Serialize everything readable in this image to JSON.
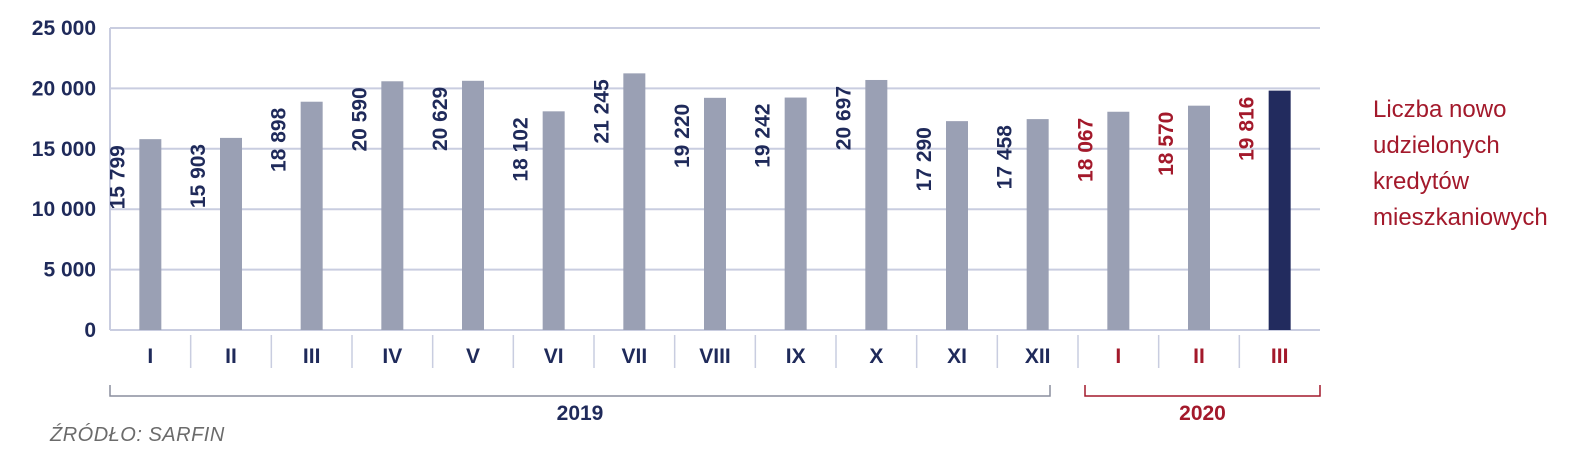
{
  "chart_data": {
    "type": "bar",
    "categories": [
      "I",
      "II",
      "III",
      "IV",
      "V",
      "VI",
      "VII",
      "VIII",
      "IX",
      "X",
      "XI",
      "XII",
      "I",
      "II",
      "III"
    ],
    "values": [
      15799,
      15903,
      18898,
      20590,
      20629,
      18102,
      21245,
      19220,
      19242,
      20697,
      17290,
      17458,
      18067,
      18570,
      19816
    ],
    "data_labels": [
      "15 799",
      "15 903",
      "18 898",
      "20 590",
      "20 629",
      "18 102",
      "21 245",
      "19 220",
      "19 242",
      "20 697",
      "17 290",
      "17 458",
      "18 067",
      "18 570",
      "19 816"
    ],
    "years": [
      {
        "label": "2019",
        "start_index": 0,
        "end_index": 11
      },
      {
        "label": "2020",
        "start_index": 12,
        "end_index": 14
      }
    ],
    "ylim": [
      0,
      25000
    ],
    "y_ticks": [
      0,
      5000,
      10000,
      15000,
      20000,
      25000
    ],
    "y_tick_labels": [
      "0",
      "5 000",
      "10 000",
      "15 000",
      "20 000",
      "25 000"
    ],
    "grid": true,
    "legend_placement": "right",
    "highlight_index": 14,
    "colors": {
      "bar": "#9aa0b4",
      "bar_highlight": "#222b5e",
      "text_2019": "#1f2a5a",
      "text_2020": "#a3192b",
      "grid": "#c9cde0"
    }
  },
  "legend": {
    "lines": [
      "Liczba nowo",
      "udzielonych",
      "kredytów",
      "mieszkaniowych"
    ]
  },
  "source": "ŹRÓDŁO: SARFIN"
}
